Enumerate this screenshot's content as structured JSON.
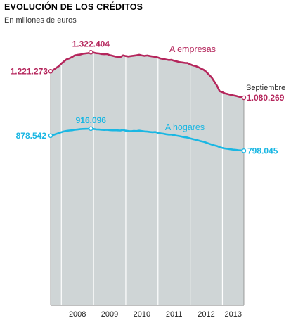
{
  "title": "EVOLUCIÓN DE LOS CRÉDITOS",
  "subtitle": "En millones de euros",
  "colors": {
    "empresas": "#b5265c",
    "hogares": "#1ab7e3",
    "panel": "#cfd5d6",
    "grid": "#ffffff"
  },
  "chart_data": {
    "type": "area",
    "title": "EVOLUCIÓN DE LOS CRÉDITOS",
    "subtitle": "En millones de euros",
    "x_ticks": [
      "2008",
      "2009",
      "2010",
      "2011",
      "2012",
      "2013"
    ],
    "y_range": [
      400000,
      1400000
    ],
    "annotation": "Septiembre",
    "series": [
      {
        "name": "A empresas",
        "color": "#b5265c",
        "points": [
          [
            "2007-09",
            1221273
          ],
          [
            "2007-10",
            1228000
          ],
          [
            "2007-11",
            1238000
          ],
          [
            "2007-12",
            1248000
          ],
          [
            "2008-01",
            1262000
          ],
          [
            "2008-02",
            1274000
          ],
          [
            "2008-03",
            1285000
          ],
          [
            "2008-04",
            1290000
          ],
          [
            "2008-05",
            1297000
          ],
          [
            "2008-06",
            1306000
          ],
          [
            "2008-07",
            1308000
          ],
          [
            "2008-08",
            1310000
          ],
          [
            "2008-09",
            1314000
          ],
          [
            "2008-10",
            1316000
          ],
          [
            "2008-11",
            1318000
          ],
          [
            "2008-12",
            1322404
          ],
          [
            "2009-01",
            1321000
          ],
          [
            "2009-02",
            1317000
          ],
          [
            "2009-03",
            1316000
          ],
          [
            "2009-04",
            1313000
          ],
          [
            "2009-05",
            1312000
          ],
          [
            "2009-06",
            1313000
          ],
          [
            "2009-07",
            1307000
          ],
          [
            "2009-08",
            1304000
          ],
          [
            "2009-09",
            1300000
          ],
          [
            "2009-10",
            1298000
          ],
          [
            "2009-11",
            1297000
          ],
          [
            "2009-12",
            1306000
          ],
          [
            "2010-01",
            1302000
          ],
          [
            "2010-02",
            1300000
          ],
          [
            "2010-03",
            1302000
          ],
          [
            "2010-04",
            1304000
          ],
          [
            "2010-05",
            1306000
          ],
          [
            "2010-06",
            1309000
          ],
          [
            "2010-07",
            1305000
          ],
          [
            "2010-08",
            1303000
          ],
          [
            "2010-09",
            1305000
          ],
          [
            "2010-10",
            1302000
          ],
          [
            "2010-11",
            1300000
          ],
          [
            "2010-12",
            1298000
          ],
          [
            "2011-01",
            1294000
          ],
          [
            "2011-02",
            1289000
          ],
          [
            "2011-03",
            1287000
          ],
          [
            "2011-04",
            1284000
          ],
          [
            "2011-05",
            1281000
          ],
          [
            "2011-06",
            1282000
          ],
          [
            "2011-07",
            1277000
          ],
          [
            "2011-08",
            1274000
          ],
          [
            "2011-09",
            1270000
          ],
          [
            "2011-10",
            1268000
          ],
          [
            "2011-11",
            1266000
          ],
          [
            "2011-12",
            1265000
          ],
          [
            "2012-01",
            1258000
          ],
          [
            "2012-02",
            1252000
          ],
          [
            "2012-03",
            1249000
          ],
          [
            "2012-04",
            1243000
          ],
          [
            "2012-05",
            1236000
          ],
          [
            "2012-06",
            1229000
          ],
          [
            "2012-07",
            1218000
          ],
          [
            "2012-08",
            1203000
          ],
          [
            "2012-09",
            1188000
          ],
          [
            "2012-10",
            1166000
          ],
          [
            "2012-11",
            1144000
          ],
          [
            "2012-12",
            1115000
          ],
          [
            "2013-01",
            1110000
          ],
          [
            "2013-02",
            1103000
          ],
          [
            "2013-03",
            1100000
          ],
          [
            "2013-04",
            1096000
          ],
          [
            "2013-05",
            1093000
          ],
          [
            "2013-06",
            1090000
          ],
          [
            "2013-07",
            1086000
          ],
          [
            "2013-08",
            1083000
          ],
          [
            "2013-09",
            1080269
          ]
        ],
        "labels": [
          {
            "date": "2007-09",
            "text": "1.221.273"
          },
          {
            "date": "2008-12",
            "text": "1.322.404"
          },
          {
            "date": "2013-09",
            "text": "1.080.269"
          }
        ],
        "series_label": "A empresas"
      },
      {
        "name": "A hogares",
        "color": "#1ab7e3",
        "points": [
          [
            "2007-09",
            878542
          ],
          [
            "2007-10",
            882000
          ],
          [
            "2007-11",
            887000
          ],
          [
            "2007-12",
            892000
          ],
          [
            "2008-01",
            897000
          ],
          [
            "2008-02",
            901000
          ],
          [
            "2008-03",
            904000
          ],
          [
            "2008-04",
            906000
          ],
          [
            "2008-05",
            907000
          ],
          [
            "2008-06",
            910000
          ],
          [
            "2008-07",
            911000
          ],
          [
            "2008-08",
            913000
          ],
          [
            "2008-09",
            914000
          ],
          [
            "2008-10",
            914500
          ],
          [
            "2008-11",
            915000
          ],
          [
            "2008-12",
            916096
          ],
          [
            "2009-01",
            914000
          ],
          [
            "2009-02",
            912000
          ],
          [
            "2009-03",
            911000
          ],
          [
            "2009-04",
            910000
          ],
          [
            "2009-05",
            909000
          ],
          [
            "2009-06",
            910000
          ],
          [
            "2009-07",
            908000
          ],
          [
            "2009-08",
            907000
          ],
          [
            "2009-09",
            907500
          ],
          [
            "2009-10",
            906500
          ],
          [
            "2009-11",
            906000
          ],
          [
            "2009-12",
            909000
          ],
          [
            "2010-01",
            905000
          ],
          [
            "2010-02",
            903000
          ],
          [
            "2010-03",
            902000
          ],
          [
            "2010-04",
            904000
          ],
          [
            "2010-05",
            903000
          ],
          [
            "2010-06",
            905000
          ],
          [
            "2010-07",
            903000
          ],
          [
            "2010-08",
            901000
          ],
          [
            "2010-09",
            900000
          ],
          [
            "2010-10",
            898000
          ],
          [
            "2010-11",
            897000
          ],
          [
            "2010-12",
            898000
          ],
          [
            "2011-01",
            894000
          ],
          [
            "2011-02",
            891000
          ],
          [
            "2011-03",
            889000
          ],
          [
            "2011-04",
            886000
          ],
          [
            "2011-05",
            884000
          ],
          [
            "2011-06",
            884000
          ],
          [
            "2011-07",
            881000
          ],
          [
            "2011-08",
            878000
          ],
          [
            "2011-09",
            876000
          ],
          [
            "2011-10",
            873000
          ],
          [
            "2011-11",
            870000
          ],
          [
            "2011-12",
            868000
          ],
          [
            "2012-01",
            864000
          ],
          [
            "2012-02",
            860000
          ],
          [
            "2012-03",
            857000
          ],
          [
            "2012-04",
            853000
          ],
          [
            "2012-05",
            849000
          ],
          [
            "2012-06",
            846000
          ],
          [
            "2012-07",
            841000
          ],
          [
            "2012-08",
            836000
          ],
          [
            "2012-09",
            831000
          ],
          [
            "2012-10",
            827000
          ],
          [
            "2012-11",
            823000
          ],
          [
            "2012-12",
            817000
          ],
          [
            "2013-01",
            813000
          ],
          [
            "2013-02",
            810000
          ],
          [
            "2013-03",
            808000
          ],
          [
            "2013-04",
            806000
          ],
          [
            "2013-05",
            804000
          ],
          [
            "2013-06",
            803000
          ],
          [
            "2013-07",
            801000
          ],
          [
            "2013-08",
            800000
          ],
          [
            "2013-09",
            798045
          ]
        ],
        "labels": [
          {
            "date": "2007-09",
            "text": "878.542"
          },
          {
            "date": "2008-12",
            "text": "916.096"
          },
          {
            "date": "2013-09",
            "text": "798.045"
          }
        ],
        "series_label": "A hogares"
      }
    ]
  }
}
